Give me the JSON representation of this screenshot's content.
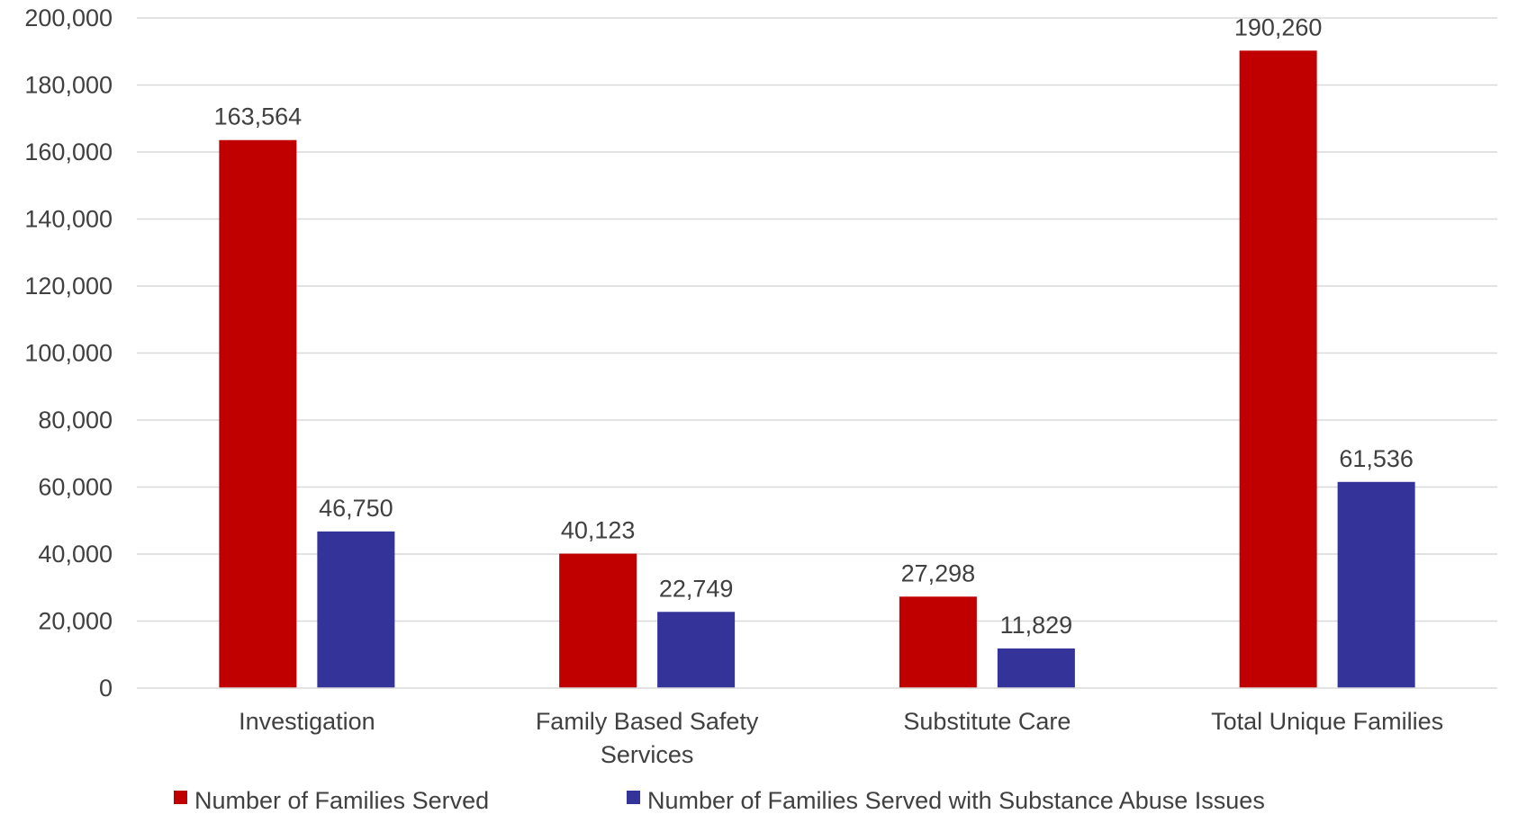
{
  "chart_data": {
    "type": "bar",
    "title": "",
    "xlabel": "",
    "ylabel": "",
    "categories": [
      [
        "Investigation"
      ],
      [
        "Family Based Safety",
        "Services"
      ],
      [
        "Substitute Care"
      ],
      [
        "Total Unique Families"
      ]
    ],
    "series": [
      {
        "name": "Number of Families Served",
        "color": "#c00000",
        "values": [
          163564,
          40123,
          27298,
          190260
        ],
        "labels": [
          "163,564",
          "40,123",
          "27,298",
          "190,260"
        ]
      },
      {
        "name": "Number of Families Served with Substance Abuse Issues",
        "color": "#333399",
        "values": [
          46750,
          22749,
          11829,
          61536
        ],
        "labels": [
          "46,750",
          "22,749",
          "11,829",
          "61,536"
        ]
      }
    ],
    "ylim": [
      0,
      200000
    ],
    "yticks": [
      0,
      20000,
      40000,
      60000,
      80000,
      100000,
      120000,
      140000,
      160000,
      180000,
      200000
    ],
    "ytick_labels": [
      "0",
      "20,000",
      "40,000",
      "60,000",
      "80,000",
      "100,000",
      "120,000",
      "140,000",
      "160,000",
      "180,000",
      "200,000"
    ],
    "grid": true,
    "legend_position": "bottom"
  }
}
